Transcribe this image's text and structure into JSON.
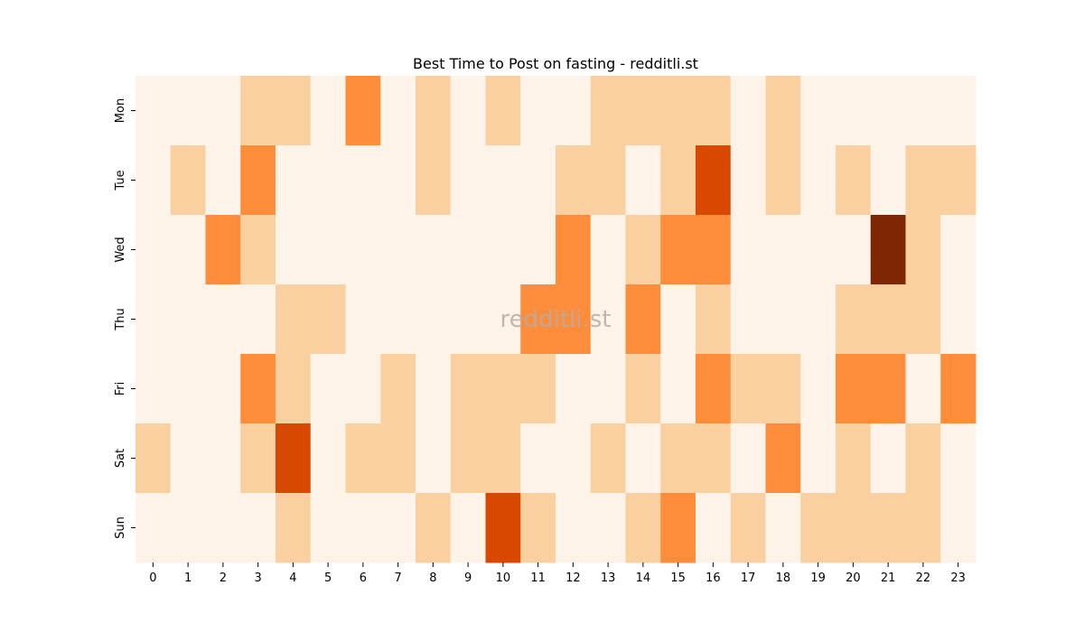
{
  "chart_data": {
    "type": "heatmap",
    "title": "Best Time to Post on fasting - redditli.st",
    "watermark": "redditli.st",
    "xlabel": "",
    "ylabel": "",
    "x_labels": [
      "0",
      "1",
      "2",
      "3",
      "4",
      "5",
      "6",
      "7",
      "8",
      "9",
      "10",
      "11",
      "12",
      "13",
      "14",
      "15",
      "16",
      "17",
      "18",
      "19",
      "20",
      "21",
      "22",
      "23"
    ],
    "y_labels": [
      "Mon",
      "Tue",
      "Wed",
      "Thu",
      "Fri",
      "Sat",
      "Sun"
    ],
    "level_colors": [
      "#fef3e8",
      "#fbd0a1",
      "#fd8c3b",
      "#d94801",
      "#7f2704"
    ],
    "values": [
      [
        0,
        0,
        0,
        1,
        1,
        0,
        2,
        0,
        1,
        0,
        1,
        0,
        0,
        1,
        1,
        1,
        1,
        0,
        1,
        0,
        0,
        0,
        0,
        0
      ],
      [
        0,
        1,
        0,
        2,
        0,
        0,
        0,
        0,
        1,
        0,
        0,
        0,
        1,
        1,
        0,
        1,
        3,
        0,
        1,
        0,
        1,
        0,
        1,
        1
      ],
      [
        0,
        0,
        2,
        1,
        0,
        0,
        0,
        0,
        0,
        0,
        0,
        0,
        2,
        0,
        1,
        2,
        2,
        0,
        0,
        0,
        0,
        4,
        1,
        0
      ],
      [
        0,
        0,
        0,
        0,
        1,
        1,
        0,
        0,
        0,
        0,
        0,
        2,
        2,
        0,
        2,
        0,
        1,
        0,
        0,
        0,
        1,
        1,
        1,
        0
      ],
      [
        0,
        0,
        0,
        2,
        1,
        0,
        0,
        1,
        0,
        1,
        1,
        1,
        0,
        0,
        1,
        0,
        2,
        1,
        1,
        0,
        2,
        2,
        0,
        2
      ],
      [
        1,
        0,
        0,
        1,
        3,
        0,
        1,
        1,
        0,
        1,
        1,
        0,
        0,
        1,
        0,
        1,
        1,
        0,
        2,
        0,
        1,
        0,
        1,
        0
      ],
      [
        0,
        0,
        0,
        0,
        1,
        0,
        0,
        0,
        1,
        0,
        3,
        1,
        0,
        0,
        1,
        2,
        0,
        1,
        0,
        1,
        1,
        1,
        1,
        0
      ]
    ]
  }
}
